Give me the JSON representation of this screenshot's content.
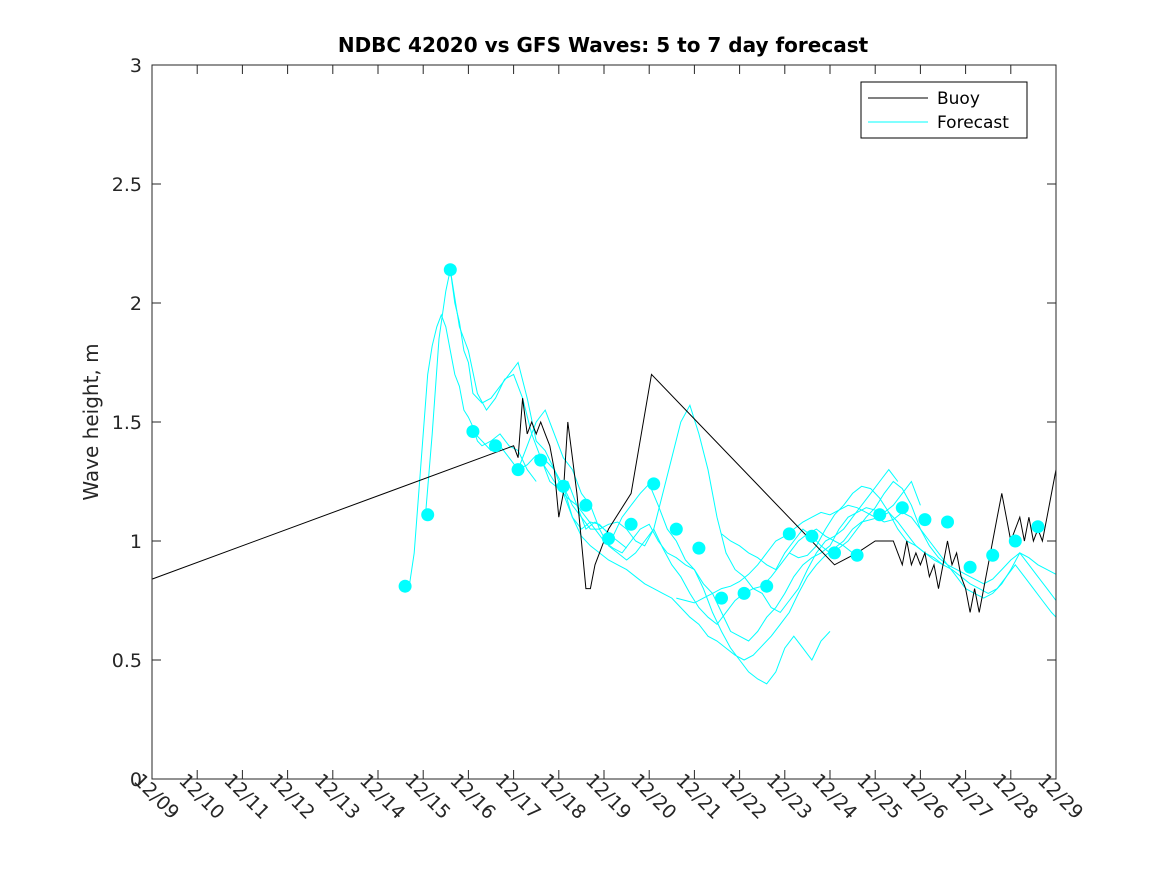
{
  "chart_data": {
    "type": "line",
    "title": "NDBC 42020 vs GFS Waves: 5 to 7 day forecast",
    "xlabel": "",
    "ylabel": "Wave height, m",
    "xlim": [
      0,
      20
    ],
    "ylim": [
      0,
      3
    ],
    "x_tick_values": [
      0,
      1,
      2,
      3,
      4,
      5,
      6,
      7,
      8,
      9,
      10,
      11,
      12,
      13,
      14,
      15,
      16,
      17,
      18,
      19,
      20
    ],
    "x_tick_labels": [
      "12/09",
      "12/10",
      "12/11",
      "12/12",
      "12/13",
      "12/14",
      "12/15",
      "12/16",
      "12/17",
      "12/18",
      "12/19",
      "12/20",
      "12/21",
      "12/22",
      "12/23",
      "12/24",
      "12/25",
      "12/26",
      "12/27",
      "12/28",
      "12/29"
    ],
    "y_tick_values": [
      0,
      0.5,
      1,
      1.5,
      2,
      2.5,
      3
    ],
    "y_tick_labels": [
      "0",
      "0.5",
      "1",
      "1.5",
      "2",
      "2.5",
      "3"
    ],
    "legend": {
      "position": "top-right",
      "entries": [
        {
          "label": "Buoy",
          "color": "#000000"
        },
        {
          "label": "Forecast",
          "color": "#00FFFF"
        }
      ]
    },
    "series": [
      {
        "name": "Buoy",
        "color": "#000000",
        "x": [
          0,
          8.0,
          8.1,
          8.2,
          8.3,
          8.4,
          8.5,
          8.6,
          8.7,
          8.8,
          8.9,
          9.0,
          9.1,
          9.2,
          9.3,
          9.4,
          9.5,
          9.6,
          9.7,
          9.8,
          9.9,
          10.0,
          10.1,
          10.6,
          11.05,
          15.1,
          15.6,
          16.0,
          16.4,
          16.5,
          16.6,
          16.7,
          16.8,
          16.9,
          17.0,
          17.1,
          17.2,
          17.3,
          17.4,
          17.5,
          17.6,
          17.7,
          17.8,
          17.9,
          18.0,
          18.1,
          18.2,
          18.3,
          18.4,
          18.5,
          18.6,
          18.7,
          18.8,
          18.9,
          19.0,
          19.1,
          19.2,
          19.3,
          19.4,
          19.5,
          19.6,
          19.7,
          19.8,
          19.9,
          20.0
        ],
        "y": [
          0.84,
          1.4,
          1.35,
          1.6,
          1.45,
          1.5,
          1.45,
          1.5,
          1.45,
          1.4,
          1.3,
          1.1,
          1.2,
          1.5,
          1.35,
          1.2,
          1.0,
          0.8,
          0.8,
          0.9,
          0.95,
          1.0,
          1.05,
          1.2,
          1.7,
          0.9,
          0.95,
          1.0,
          1.0,
          0.95,
          0.9,
          1.0,
          0.9,
          0.95,
          0.9,
          0.95,
          0.85,
          0.9,
          0.8,
          0.9,
          1.0,
          0.9,
          0.95,
          0.85,
          0.8,
          0.7,
          0.8,
          0.7,
          0.8,
          0.9,
          1.0,
          1.1,
          1.2,
          1.1,
          1.0,
          1.05,
          1.1,
          1.0,
          1.1,
          1.0,
          1.05,
          1.0,
          1.1,
          1.2,
          1.3
        ]
      },
      {
        "name": "Forecast",
        "color": "#00FFFF",
        "x": [
          5.55,
          5.7,
          5.8,
          5.9,
          6.0,
          6.1,
          6.2,
          6.3,
          6.4,
          6.5,
          6.6,
          6.7,
          6.8,
          6.9,
          7.0,
          7.1,
          7.2,
          7.3,
          7.5,
          7.7,
          7.9,
          8.1,
          8.3,
          8.5
        ],
        "y": [
          0.81,
          0.82,
          0.95,
          1.2,
          1.45,
          1.7,
          1.82,
          1.9,
          1.95,
          1.9,
          1.8,
          1.7,
          1.65,
          1.55,
          1.52,
          1.48,
          1.42,
          1.4,
          1.42,
          1.45,
          1.4,
          1.38,
          1.3,
          1.25
        ]
      },
      {
        "name": "Forecast",
        "color": "#00FFFF",
        "x": [
          6.05,
          6.2,
          6.35,
          6.5,
          6.6,
          6.7,
          6.8,
          6.9,
          7.0,
          7.1,
          7.3,
          7.5,
          7.7,
          7.9,
          8.1,
          8.3,
          8.5,
          8.7,
          8.9,
          9.1,
          9.3,
          9.5,
          9.7,
          9.9,
          10.1,
          10.3,
          10.5
        ],
        "y": [
          1.11,
          1.45,
          1.85,
          2.05,
          2.14,
          2.0,
          1.92,
          1.8,
          1.75,
          1.62,
          1.58,
          1.6,
          1.65,
          1.7,
          1.75,
          1.6,
          1.42,
          1.38,
          1.3,
          1.2,
          1.1,
          1.05,
          1.08,
          1.07,
          1.03,
          1.0,
          0.97
        ]
      },
      {
        "name": "Forecast",
        "color": "#00FFFF",
        "x": [
          6.6,
          6.8,
          7.0,
          7.2,
          7.4,
          7.6,
          7.8,
          8.0,
          8.2,
          8.4,
          8.6,
          8.8,
          9.0,
          9.2,
          9.4,
          9.6,
          9.8,
          10.0,
          10.2,
          10.4,
          10.6,
          10.8,
          11.0,
          11.2,
          11.4,
          11.6,
          11.8,
          12.0,
          12.2,
          12.4,
          12.6,
          12.8,
          13.0,
          13.2,
          13.4,
          13.6,
          13.8,
          14.0,
          14.2,
          14.4,
          14.6,
          14.8,
          15.0
        ],
        "y": [
          2.14,
          1.9,
          1.8,
          1.62,
          1.55,
          1.6,
          1.68,
          1.7,
          1.6,
          1.45,
          1.35,
          1.25,
          1.22,
          1.25,
          1.15,
          1.05,
          1.08,
          1.05,
          1.02,
          1.1,
          1.15,
          1.2,
          1.24,
          1.15,
          1.05,
          1.0,
          0.92,
          0.88,
          0.8,
          0.7,
          0.62,
          0.55,
          0.5,
          0.45,
          0.42,
          0.4,
          0.45,
          0.55,
          0.6,
          0.55,
          0.5,
          0.58,
          0.62
        ]
      },
      {
        "name": "Forecast",
        "color": "#00FFFF",
        "x": [
          7.1,
          7.3,
          7.5,
          7.7,
          7.9,
          8.1,
          8.3,
          8.5,
          8.7,
          8.9,
          9.1,
          9.3,
          9.5,
          9.7,
          9.9,
          10.1,
          10.3,
          10.5,
          10.7,
          10.9,
          11.1,
          11.3,
          11.5,
          11.7,
          11.9,
          12.1,
          12.3,
          12.5,
          12.7,
          12.9,
          13.1,
          13.3,
          13.5,
          13.7,
          13.9,
          14.1,
          14.3,
          14.5,
          14.7,
          14.9,
          15.1,
          15.3,
          15.5
        ],
        "y": [
          1.46,
          1.42,
          1.38,
          1.4,
          1.35,
          1.3,
          1.32,
          1.36,
          1.34,
          1.3,
          1.23,
          1.15,
          1.1,
          1.05,
          1.05,
          1.07,
          1.08,
          1.05,
          1.0,
          0.98,
          1.05,
          0.97,
          0.9,
          0.85,
          0.78,
          0.72,
          0.68,
          0.65,
          0.7,
          0.75,
          0.78,
          0.8,
          0.81,
          0.85,
          0.9,
          0.95,
          1.0,
          1.03,
          1.05,
          1.02,
          1.0,
          0.98,
          0.95
        ]
      },
      {
        "name": "Forecast",
        "color": "#00FFFF",
        "x": [
          8.1,
          8.3,
          8.5,
          8.7,
          8.9,
          9.1,
          9.3,
          9.5,
          9.7,
          9.9,
          10.1,
          10.3,
          10.5,
          10.7,
          10.9,
          11.1,
          11.3,
          11.5,
          11.7,
          11.9,
          12.1,
          12.3,
          12.5,
          12.7,
          12.9,
          13.1,
          13.3,
          13.5,
          13.7,
          13.9,
          14.1,
          14.3,
          14.5,
          14.7,
          14.9,
          15.1,
          15.3,
          15.5,
          15.7,
          15.9,
          16.1,
          16.3,
          16.5
        ],
        "y": [
          1.3,
          1.4,
          1.5,
          1.55,
          1.45,
          1.35,
          1.3,
          1.2,
          1.15,
          1.05,
          0.98,
          0.95,
          0.92,
          0.95,
          1.0,
          1.05,
          1.2,
          1.35,
          1.5,
          1.57,
          1.45,
          1.3,
          1.1,
          0.95,
          0.88,
          0.85,
          0.8,
          0.78,
          0.72,
          0.7,
          0.75,
          0.8,
          0.88,
          0.95,
          1.0,
          1.02,
          1.05,
          1.1,
          1.15,
          1.2,
          1.25,
          1.3,
          1.25
        ]
      },
      {
        "name": "Forecast",
        "color": "#00FFFF",
        "x": [
          8.6,
          8.8,
          9.0,
          9.2,
          9.4,
          9.6,
          9.8,
          10.0,
          10.2,
          10.4,
          10.6,
          10.8,
          11.0,
          11.2,
          11.4,
          11.6,
          11.8,
          12.0,
          12.2,
          12.4,
          12.6,
          12.8,
          13.0,
          13.2,
          13.4,
          13.6,
          13.8,
          14.0,
          14.2,
          14.4,
          14.6,
          14.8,
          15.0,
          15.2,
          15.4,
          15.6,
          15.8,
          16.0,
          16.2,
          16.4,
          16.6,
          16.8,
          17.0
        ],
        "y": [
          1.34,
          1.28,
          1.22,
          1.18,
          1.15,
          1.1,
          1.05,
          1.0,
          0.97,
          0.95,
          1.0,
          1.05,
          1.07,
          1.0,
          0.95,
          0.93,
          0.9,
          0.88,
          0.82,
          0.78,
          0.7,
          0.62,
          0.6,
          0.58,
          0.62,
          0.68,
          0.72,
          0.78,
          0.85,
          0.9,
          0.93,
          0.95,
          0.98,
          1.05,
          1.1,
          1.12,
          1.14,
          1.13,
          1.12,
          1.15,
          1.2,
          1.25,
          1.15
        ]
      },
      {
        "name": "Forecast",
        "color": "#00FFFF",
        "x": [
          9.1,
          9.3,
          9.5,
          9.7,
          9.9,
          10.1,
          10.3,
          10.5,
          10.7,
          10.9,
          11.1,
          11.3,
          11.5,
          11.7,
          11.9,
          12.1,
          12.3,
          12.5,
          12.7,
          12.9,
          13.1,
          13.3,
          13.5,
          13.7,
          13.9,
          14.1,
          14.3,
          14.5,
          14.7,
          14.9,
          15.1,
          15.3,
          15.5,
          15.7,
          15.9,
          16.1,
          16.3,
          16.5,
          16.7,
          16.9,
          17.1,
          17.3,
          17.5
        ],
        "y": [
          1.23,
          1.1,
          1.02,
          0.98,
          0.95,
          0.92,
          0.9,
          0.88,
          0.85,
          0.82,
          0.8,
          0.78,
          0.76,
          0.72,
          0.68,
          0.65,
          0.6,
          0.58,
          0.55,
          0.52,
          0.5,
          0.52,
          0.56,
          0.6,
          0.65,
          0.7,
          0.78,
          0.85,
          0.9,
          0.94,
          0.97,
          1.0,
          1.05,
          1.08,
          1.09,
          1.1,
          1.12,
          1.08,
          1.03,
          0.98,
          0.95,
          0.92,
          0.9
        ]
      },
      {
        "name": "Forecast",
        "color": "#00FFFF",
        "x": [
          11.6,
          11.8,
          12.0,
          12.2,
          12.4,
          12.6,
          12.8,
          13.0,
          13.2,
          13.4,
          13.6,
          13.8,
          14.0,
          14.2,
          14.4,
          14.6,
          14.8,
          15.0,
          15.2,
          15.4,
          15.6,
          15.8,
          16.0,
          16.2,
          16.4,
          16.6,
          16.8,
          17.0,
          17.2,
          17.4,
          17.6,
          17.8,
          18.0,
          18.2,
          18.4,
          18.6,
          18.8,
          19.0,
          19.2,
          19.4,
          19.6,
          19.8,
          20.0
        ],
        "y": [
          0.76,
          0.75,
          0.74,
          0.76,
          0.78,
          0.8,
          0.81,
          0.83,
          0.86,
          0.9,
          0.95,
          1.0,
          1.02,
          1.05,
          1.08,
          1.1,
          1.12,
          1.11,
          1.13,
          1.15,
          1.14,
          1.12,
          1.1,
          1.08,
          1.09,
          1.12,
          1.1,
          1.05,
          1.0,
          0.95,
          0.9,
          0.88,
          0.86,
          0.84,
          0.82,
          0.84,
          0.88,
          0.92,
          0.95,
          0.93,
          0.9,
          0.88,
          0.86
        ]
      },
      {
        "name": "Forecast",
        "color": "#00FFFF",
        "x": [
          12.6,
          12.8,
          13.0,
          13.2,
          13.4,
          13.6,
          13.8,
          14.0,
          14.2,
          14.4,
          14.6,
          14.8,
          15.0,
          15.2,
          15.4,
          15.6,
          15.8,
          16.0,
          16.2,
          16.4,
          16.6,
          16.8,
          17.0,
          17.2,
          17.4,
          17.6,
          17.8,
          18.0,
          18.2,
          18.4,
          18.6,
          18.8,
          19.0,
          19.2,
          19.4,
          19.6,
          19.8,
          20.0
        ],
        "y": [
          1.03,
          1.0,
          0.98,
          0.95,
          0.93,
          0.9,
          0.88,
          0.95,
          1.0,
          1.05,
          1.02,
          0.98,
          0.95,
          0.97,
          1.0,
          1.05,
          1.1,
          1.14,
          1.2,
          1.25,
          1.22,
          1.15,
          1.05,
          0.98,
          0.93,
          0.9,
          0.85,
          0.8,
          0.78,
          0.76,
          0.78,
          0.82,
          0.88,
          0.95,
          0.9,
          0.85,
          0.8,
          0.75
        ]
      },
      {
        "name": "Forecast",
        "color": "#00FFFF",
        "x": [
          14.1,
          14.3,
          14.5,
          14.7,
          14.9,
          15.1,
          15.3,
          15.5,
          15.7,
          15.9,
          16.1,
          16.3,
          16.5,
          16.7,
          16.9,
          17.1,
          17.3,
          17.5,
          17.7,
          17.9,
          18.1,
          18.3,
          18.5,
          18.7,
          18.9,
          19.1,
          19.3,
          19.5,
          19.7,
          19.9,
          20.0
        ],
        "y": [
          0.95,
          0.93,
          0.94,
          0.98,
          1.05,
          1.11,
          1.15,
          1.2,
          1.23,
          1.22,
          1.18,
          1.12,
          1.05,
          1.0,
          0.98,
          0.95,
          0.93,
          0.9,
          0.88,
          0.85,
          0.82,
          0.8,
          0.78,
          0.8,
          0.85,
          0.9,
          0.85,
          0.8,
          0.75,
          0.7,
          0.68
        ]
      }
    ],
    "forecast_markers": {
      "name": "Forecast",
      "color": "#00FFFF",
      "x": [
        5.6,
        6.1,
        6.6,
        7.1,
        7.6,
        8.1,
        8.6,
        9.1,
        9.6,
        10.1,
        10.6,
        11.1,
        11.6,
        12.1,
        12.6,
        13.1,
        13.6,
        14.1,
        14.6,
        15.1,
        15.6,
        16.1,
        16.6,
        17.1,
        17.6,
        18.1,
        18.6,
        19.1,
        19.6
      ],
      "y": [
        0.81,
        1.11,
        2.14,
        1.46,
        1.4,
        1.3,
        1.34,
        1.23,
        1.15,
        1.01,
        1.07,
        1.24,
        1.05,
        0.97,
        0.76,
        0.78,
        0.81,
        1.03,
        1.02,
        0.95,
        0.94,
        1.11,
        1.14,
        1.09,
        1.08,
        0.89,
        0.94,
        1.0,
        1.06
      ]
    }
  }
}
